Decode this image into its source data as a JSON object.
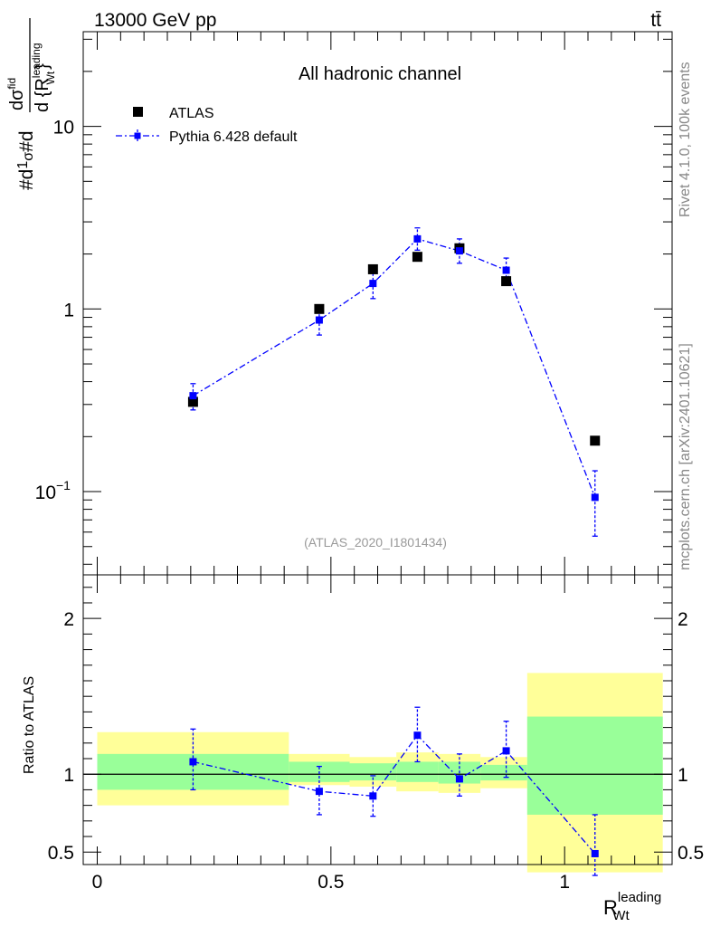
{
  "header": {
    "energy_label": "13000 GeV pp",
    "process_label": "tt̄"
  },
  "side_labels": {
    "rivet": "Rivet 4.1.0,  100k events",
    "source": "mcplots.cern.ch [arXiv:2401.10621]"
  },
  "colors": {
    "data": "#000000",
    "mc": "#0000ff",
    "band_inner": "#99ff99",
    "band_outer": "#ffff99",
    "watermark": "#999999",
    "side_text": "#888888"
  },
  "chart_data": [
    {
      "type": "scatter",
      "title": "All hadronic channel",
      "ylabel_parts": [
        "#d",
        "1",
        "σ",
        "#d",
        "dσ",
        "fid",
        "d {R",
        "leading",
        "Wt",
        "}"
      ],
      "yscale": "log",
      "ylim": [
        0.035,
        33
      ],
      "xlim": [
        -0.03,
        1.23
      ],
      "y_ticks": [
        {
          "value": 0.1,
          "base": "10",
          "exp": "−1"
        },
        {
          "value": 1,
          "label": "1"
        },
        {
          "value": 10,
          "label": "10"
        }
      ],
      "watermark": "(ATLAS_2020_I1801434)",
      "legend": [
        {
          "name": "ATLAS",
          "marker": "square"
        },
        {
          "name": "Pythia 6.428 default",
          "marker": "square-dashdot"
        }
      ],
      "series": [
        {
          "name": "ATLAS",
          "x": [
            0.205,
            0.475,
            0.59,
            0.685,
            0.775,
            0.875,
            1.065
          ],
          "y": [
            0.31,
            1.0,
            1.65,
            1.93,
            2.15,
            1.42,
            0.19
          ]
        },
        {
          "name": "Pythia 6.428 default",
          "x": [
            0.205,
            0.475,
            0.59,
            0.685,
            0.775,
            0.875,
            1.065
          ],
          "y": [
            0.335,
            0.87,
            1.38,
            2.42,
            2.08,
            1.63,
            0.093
          ],
          "y_low": [
            0.28,
            0.72,
            1.14,
            2.1,
            1.78,
            1.4,
            0.057
          ],
          "y_high": [
            0.39,
            1.0,
            1.62,
            2.78,
            2.42,
            1.9,
            0.13
          ]
        }
      ]
    },
    {
      "type": "scatter",
      "ylabel": "Ratio to ATLAS",
      "xlabel_parts": [
        "R",
        "leading",
        "Wt"
      ],
      "ylim": [
        0.42,
        2.28
      ],
      "xlim": [
        -0.03,
        1.23
      ],
      "x_ticks": [
        {
          "value": 0,
          "label": "0"
        },
        {
          "value": 0.5,
          "label": "0.5"
        },
        {
          "value": 1,
          "label": "1"
        }
      ],
      "y_ticks": [
        {
          "value": 0.5,
          "label": "0.5"
        },
        {
          "value": 1,
          "label": "1"
        },
        {
          "value": 2,
          "label": "2"
        }
      ],
      "bands": [
        {
          "x0": 0.0,
          "x1": 0.41,
          "outer": [
            0.8,
            1.27
          ],
          "inner": [
            0.9,
            1.13
          ]
        },
        {
          "x0": 0.41,
          "x1": 0.54,
          "outer": [
            0.93,
            1.13
          ],
          "inner": [
            0.95,
            1.08
          ]
        },
        {
          "x0": 0.54,
          "x1": 0.64,
          "outer": [
            0.92,
            1.11
          ],
          "inner": [
            0.96,
            1.07
          ]
        },
        {
          "x0": 0.64,
          "x1": 0.73,
          "outer": [
            0.89,
            1.14
          ],
          "inner": [
            0.95,
            1.08
          ]
        },
        {
          "x0": 0.73,
          "x1": 0.82,
          "outer": [
            0.88,
            1.13
          ],
          "inner": [
            0.94,
            1.08
          ]
        },
        {
          "x0": 0.82,
          "x1": 0.92,
          "outer": [
            0.91,
            1.11
          ],
          "inner": [
            0.96,
            1.06
          ]
        },
        {
          "x0": 0.92,
          "x1": 1.21,
          "outer": [
            0.37,
            1.65
          ],
          "inner": [
            0.74,
            1.37
          ]
        }
      ],
      "series": [
        {
          "name": "Pythia 6.428 default",
          "x": [
            0.205,
            0.475,
            0.59,
            0.685,
            0.775,
            0.875,
            1.065
          ],
          "y": [
            1.08,
            0.89,
            0.86,
            1.25,
            0.97,
            1.15,
            0.49
          ],
          "y_low": [
            0.9,
            0.74,
            0.73,
            1.08,
            0.86,
            0.98,
            0.35
          ],
          "y_high": [
            1.29,
            1.05,
            0.99,
            1.43,
            1.13,
            1.34,
            0.74
          ]
        }
      ]
    }
  ]
}
